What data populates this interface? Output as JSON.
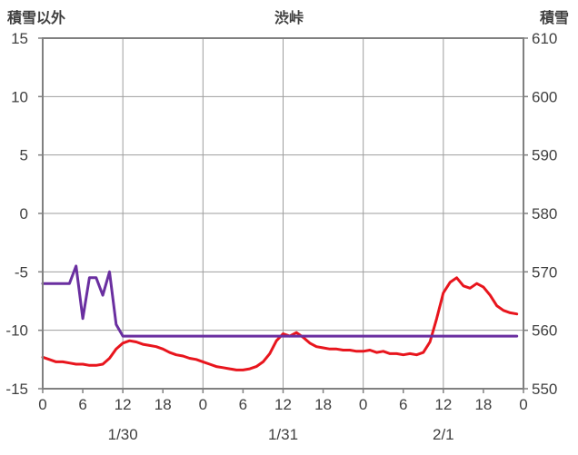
{
  "chart_data": {
    "type": "line",
    "title": "渋峠",
    "left_axis": {
      "label": "積雪以外",
      "min": -15,
      "max": 15,
      "ticks": [
        15,
        10,
        5,
        0,
        -5,
        -10,
        -15
      ]
    },
    "right_axis": {
      "label": "積雪",
      "min": 550,
      "max": 610,
      "ticks": [
        610,
        600,
        590,
        580,
        570,
        560,
        550
      ]
    },
    "x_axis": {
      "min_hour": 0,
      "max_hour": 72,
      "tick_interval": 6,
      "tick_labels": [
        "0",
        "6",
        "12",
        "18",
        "0",
        "6",
        "12",
        "18",
        "0",
        "6",
        "12",
        "18",
        "0"
      ],
      "date_labels": [
        {
          "label": "1/30",
          "hour": 12
        },
        {
          "label": "1/31",
          "hour": 36
        },
        {
          "label": "2/1",
          "hour": 60
        }
      ],
      "gridline_hours": [
        12,
        24,
        36,
        48,
        60
      ]
    },
    "colors": {
      "grid": "#9e9e9e",
      "border": "#808080",
      "text": "#404040"
    },
    "series": [
      {
        "name": "red-line",
        "axis": "left",
        "color": "#e8151d",
        "x_start": 0,
        "x_step": 1,
        "values": [
          -12.3,
          -12.5,
          -12.7,
          -12.7,
          -12.8,
          -12.9,
          -12.9,
          -13.0,
          -13.0,
          -12.9,
          -12.4,
          -11.6,
          -11.1,
          -10.9,
          -11.0,
          -11.2,
          -11.3,
          -11.4,
          -11.6,
          -11.9,
          -12.1,
          -12.2,
          -12.4,
          -12.5,
          -12.7,
          -12.9,
          -13.1,
          -13.2,
          -13.3,
          -13.4,
          -13.4,
          -13.3,
          -13.1,
          -12.7,
          -12.0,
          -10.9,
          -10.3,
          -10.5,
          -10.2,
          -10.6,
          -11.1,
          -11.4,
          -11.5,
          -11.6,
          -11.6,
          -11.7,
          -11.7,
          -11.8,
          -11.8,
          -11.7,
          -11.9,
          -11.8,
          -12.0,
          -12.0,
          -12.1,
          -12.0,
          -12.1,
          -11.9,
          -11.0,
          -9.0,
          -6.8,
          -5.9,
          -5.5,
          -6.2,
          -6.4,
          -6.0,
          -6.3,
          -7.0,
          -7.9,
          -8.3,
          -8.5,
          -8.6
        ]
      },
      {
        "name": "purple-line",
        "axis": "right",
        "color": "#6a2fa0",
        "x_start": 0,
        "x_step": 1,
        "values": [
          568,
          568,
          568,
          568,
          568,
          571,
          562,
          569,
          569,
          566,
          570,
          561,
          559,
          559,
          559,
          559,
          559,
          559,
          559,
          559,
          559,
          559,
          559,
          559,
          559,
          559,
          559,
          559,
          559,
          559,
          559,
          559,
          559,
          559,
          559,
          559,
          559,
          559,
          559,
          559,
          559,
          559,
          559,
          559,
          559,
          559,
          559,
          559,
          559,
          559,
          559,
          559,
          559,
          559,
          559,
          559,
          559,
          559,
          559,
          559,
          559,
          559,
          559,
          559,
          559,
          559,
          559,
          559,
          559,
          559,
          559,
          559
        ]
      }
    ]
  }
}
